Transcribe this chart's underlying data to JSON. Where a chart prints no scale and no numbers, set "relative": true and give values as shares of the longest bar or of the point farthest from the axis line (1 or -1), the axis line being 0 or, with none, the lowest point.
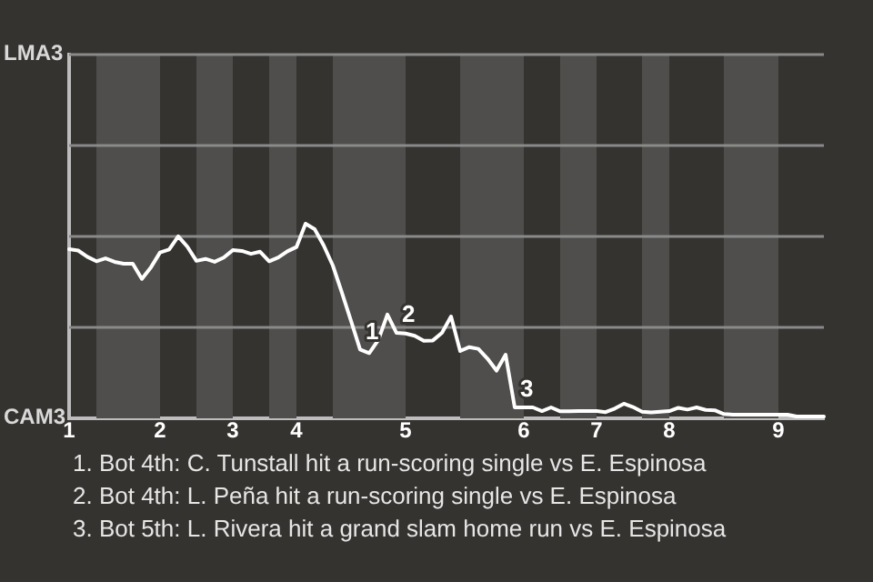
{
  "chart_data": {
    "type": "line",
    "relative": true,
    "categories": [
      "1",
      null,
      null,
      null,
      null,
      null,
      null,
      null,
      null,
      null,
      "2",
      null,
      null,
      null,
      null,
      null,
      null,
      null,
      "3",
      null,
      null,
      null,
      null,
      null,
      null,
      "4",
      null,
      null,
      null,
      null,
      null,
      null,
      null,
      null,
      null,
      null,
      null,
      "5",
      null,
      null,
      null,
      null,
      null,
      null,
      null,
      null,
      null,
      null,
      null,
      null,
      "6",
      null,
      null,
      null,
      null,
      null,
      null,
      null,
      "7",
      null,
      null,
      null,
      null,
      null,
      null,
      null,
      "8",
      null,
      null,
      null,
      null,
      null,
      null,
      null,
      null,
      null,
      null,
      null,
      "9",
      null,
      null,
      null,
      null,
      null
    ],
    "series": [
      {
        "color": "#ffffff",
        "values": [
          0.869,
          0.862,
          0.83,
          0.807,
          0.822,
          0.804,
          0.794,
          0.794,
          0.716,
          0.776,
          0.852,
          0.867,
          0.935,
          0.882,
          0.809,
          0.819,
          0.804,
          0.826,
          0.864,
          0.86,
          0.845,
          0.856,
          0.807,
          0.826,
          0.858,
          0.88,
          1,
          0.972,
          0.888,
          0.785,
          0.645,
          0.501,
          0.353,
          0.335,
          0.402,
          0.533,
          0.439,
          0.436,
          0.424,
          0.398,
          0.4,
          0.439,
          0.523,
          0.346,
          0.366,
          0.357,
          0.307,
          0.245,
          0.327,
          0.056,
          0.056,
          0.056,
          0.037,
          0.056,
          0.036,
          0.036,
          0.037,
          0.037,
          0.037,
          0.032,
          0.05,
          0.075,
          0.058,
          0.034,
          0.03,
          0.034,
          0.037,
          0.054,
          0.045,
          0.056,
          0.043,
          0.041,
          0.022,
          0.019,
          0.019,
          0.019,
          0.019,
          0.019,
          0.019,
          0.019,
          0.009,
          0.009,
          0.009,
          0.009
        ]
      }
    ],
    "legend": false,
    "marker": "none",
    "line_style": "solid",
    "ref_lines": [
      {
        "axis": "y",
        "value": 0.467,
        "color": "#8a8a8a"
      },
      {
        "axis": "y",
        "value": 0.935,
        "color": "#8a8a8a"
      },
      {
        "axis": "y",
        "value": 1.402,
        "color": "#8a8a8a"
      },
      {
        "axis": "y",
        "value": 1.869,
        "color": "#8a8a8a"
      }
    ],
    "annotations": [
      "LMA3",
      "CAM3",
      {
        "text": "1",
        "y": 0.353
      },
      {
        "text": "2",
        "y": 0.439
      },
      {
        "text": "3",
        "y": 0.056
      },
      "1. Bot 4th: C. Tunstall hit a run-scoring single vs E. Espinosa",
      "2. Bot 4th: L. Peña hit a run-scoring single vs E. Espinosa",
      "3. Bot 5th: L. Rivera hit a grand slam home run vs E. Espinosa"
    ]
  }
}
